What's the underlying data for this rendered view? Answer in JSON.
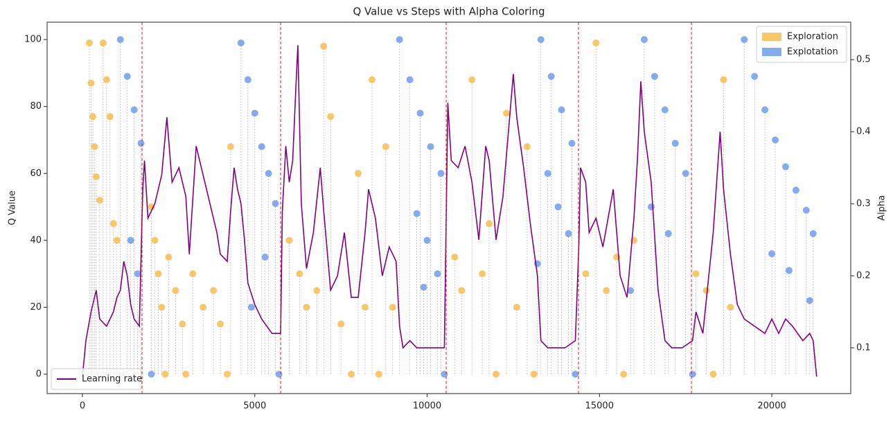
{
  "chart_data": {
    "type": "scatter",
    "title": "Q Value vs Steps with Alpha Coloring",
    "ylabel": "Q Value",
    "y2label": "Alpha",
    "xlim": [
      -1025,
      22290
    ],
    "xticks": [
      0,
      5000,
      10000,
      15000,
      20000
    ],
    "ylim": [
      -5.8,
      105.2
    ],
    "yticks": [
      0,
      20,
      40,
      60,
      80,
      100
    ],
    "y2lim": [
      0.0365,
      0.552
    ],
    "y2ticks": [
      0.1,
      0.2,
      0.3,
      0.4,
      0.5
    ],
    "legend": "upper right",
    "line_legend": "lower left",
    "vlines": [
      1729,
      5749,
      10553,
      14392,
      17668
    ],
    "vline_color": "#e41a1c",
    "stem_color": "#bdbdbd",
    "series": [
      {
        "name": "Exploration",
        "type": "scatter",
        "color": "#f6bd4f",
        "x": [
          200,
          250,
          300,
          350,
          400,
          500,
          600,
          700,
          800,
          900,
          1000,
          2000,
          2100,
          2200,
          2300,
          2400,
          2500,
          2700,
          2900,
          3000,
          3200,
          3500,
          3800,
          4000,
          4200,
          4300,
          6000,
          6300,
          6500,
          6800,
          7000,
          7200,
          7500,
          7800,
          8000,
          8200,
          8400,
          8600,
          8800,
          9000,
          10800,
          11000,
          11300,
          11600,
          11800,
          12000,
          12300,
          12600,
          12900,
          13100,
          14600,
          14900,
          15200,
          15500,
          15700,
          16000,
          17800,
          18100,
          18300,
          18600,
          18800
        ],
        "values": [
          99,
          87,
          77,
          68,
          59,
          52,
          99,
          88,
          77,
          45,
          40,
          50,
          40,
          30,
          20,
          0,
          35,
          25,
          15,
          0,
          30,
          20,
          25,
          15,
          0,
          68,
          40,
          30,
          20,
          25,
          98,
          77,
          15,
          0,
          60,
          20,
          88,
          0,
          68,
          20,
          35,
          25,
          88,
          30,
          45,
          0,
          78,
          20,
          68,
          0,
          30,
          99,
          25,
          35,
          0,
          40,
          30,
          25,
          0,
          88,
          20
        ]
      },
      {
        "name": "Explotation",
        "type": "scatter",
        "color": "#6d9eeb",
        "x": [
          1100,
          1300,
          1500,
          1700,
          1400,
          1600,
          2000,
          4600,
          4800,
          5000,
          5200,
          5400,
          5600,
          4900,
          5300,
          5700,
          9200,
          9500,
          9800,
          10100,
          10400,
          9700,
          10000,
          10300,
          9900,
          10500,
          13300,
          13600,
          13900,
          14200,
          13500,
          13800,
          14100,
          14300,
          13200,
          16300,
          16600,
          16900,
          17200,
          17500,
          16500,
          17000,
          15900,
          17700,
          19200,
          19500,
          19800,
          20100,
          20400,
          20700,
          21000,
          21200,
          20000,
          20500,
          21100
        ],
        "values": [
          100,
          89,
          79,
          69,
          40,
          30,
          0,
          99,
          88,
          78,
          68,
          60,
          51,
          20,
          35,
          0,
          100,
          88,
          78,
          68,
          60,
          48,
          40,
          30,
          26,
          0,
          100,
          89,
          79,
          69,
          60,
          50,
          42,
          0,
          33,
          100,
          89,
          79,
          69,
          60,
          50,
          42,
          25,
          0,
          100,
          89,
          79,
          70,
          62,
          55,
          49,
          42,
          36,
          31,
          22
        ]
      },
      {
        "name": "Learning rate",
        "type": "line",
        "axis": "y2",
        "color": "#800080",
        "x": [
          0,
          100,
          250,
          400,
          500,
          700,
          900,
          1000,
          1100,
          1200,
          1300,
          1400,
          1500,
          1650,
          1750,
          1800,
          1900,
          2100,
          2300,
          2450,
          2600,
          2800,
          3000,
          3100,
          3300,
          3500,
          3700,
          3900,
          4000,
          4200,
          4300,
          4400,
          4500,
          4600,
          4700,
          4800,
          5000,
          5200,
          5500,
          5750,
          5800,
          5900,
          6000,
          6100,
          6200,
          6250,
          6350,
          6500,
          6700,
          6900,
          7000,
          7200,
          7400,
          7600,
          7800,
          8000,
          8200,
          8300,
          8500,
          8700,
          8900,
          9100,
          9200,
          9300,
          9500,
          9700,
          10500,
          10600,
          10700,
          10900,
          11100,
          11300,
          11500,
          11700,
          11800,
          12000,
          12200,
          12500,
          12600,
          12800,
          13000,
          13200,
          13300,
          13500,
          14000,
          14300,
          14400,
          14450,
          14600,
          14700,
          14900,
          15100,
          15400,
          15600,
          15800,
          16000,
          16100,
          16200,
          16300,
          16500,
          16700,
          16900,
          17100,
          17400,
          17700,
          17800,
          18000,
          18300,
          18500,
          18600,
          18800,
          19000,
          19200,
          19500,
          19800,
          20000,
          20200,
          20400,
          20600,
          20900,
          21100,
          21200,
          21300
        ],
        "values": [
          0.06,
          0.11,
          0.15,
          0.18,
          0.14,
          0.13,
          0.15,
          0.17,
          0.18,
          0.22,
          0.2,
          0.16,
          0.14,
          0.13,
          0.32,
          0.36,
          0.28,
          0.3,
          0.34,
          0.42,
          0.33,
          0.35,
          0.31,
          0.23,
          0.38,
          0.34,
          0.3,
          0.26,
          0.23,
          0.22,
          0.29,
          0.35,
          0.32,
          0.3,
          0.25,
          0.19,
          0.16,
          0.14,
          0.12,
          0.12,
          0.29,
          0.38,
          0.33,
          0.36,
          0.47,
          0.52,
          0.3,
          0.21,
          0.26,
          0.35,
          0.29,
          0.18,
          0.2,
          0.26,
          0.17,
          0.17,
          0.26,
          0.32,
          0.28,
          0.2,
          0.24,
          0.22,
          0.13,
          0.1,
          0.11,
          0.1,
          0.1,
          0.44,
          0.36,
          0.35,
          0.38,
          0.33,
          0.25,
          0.38,
          0.36,
          0.25,
          0.31,
          0.48,
          0.42,
          0.35,
          0.27,
          0.2,
          0.11,
          0.1,
          0.1,
          0.11,
          0.24,
          0.35,
          0.33,
          0.26,
          0.28,
          0.24,
          0.32,
          0.2,
          0.17,
          0.28,
          0.36,
          0.47,
          0.4,
          0.33,
          0.18,
          0.11,
          0.1,
          0.1,
          0.11,
          0.15,
          0.12,
          0.26,
          0.4,
          0.32,
          0.23,
          0.16,
          0.14,
          0.13,
          0.12,
          0.14,
          0.12,
          0.14,
          0.13,
          0.11,
          0.12,
          0.11,
          0.06
        ]
      }
    ]
  }
}
